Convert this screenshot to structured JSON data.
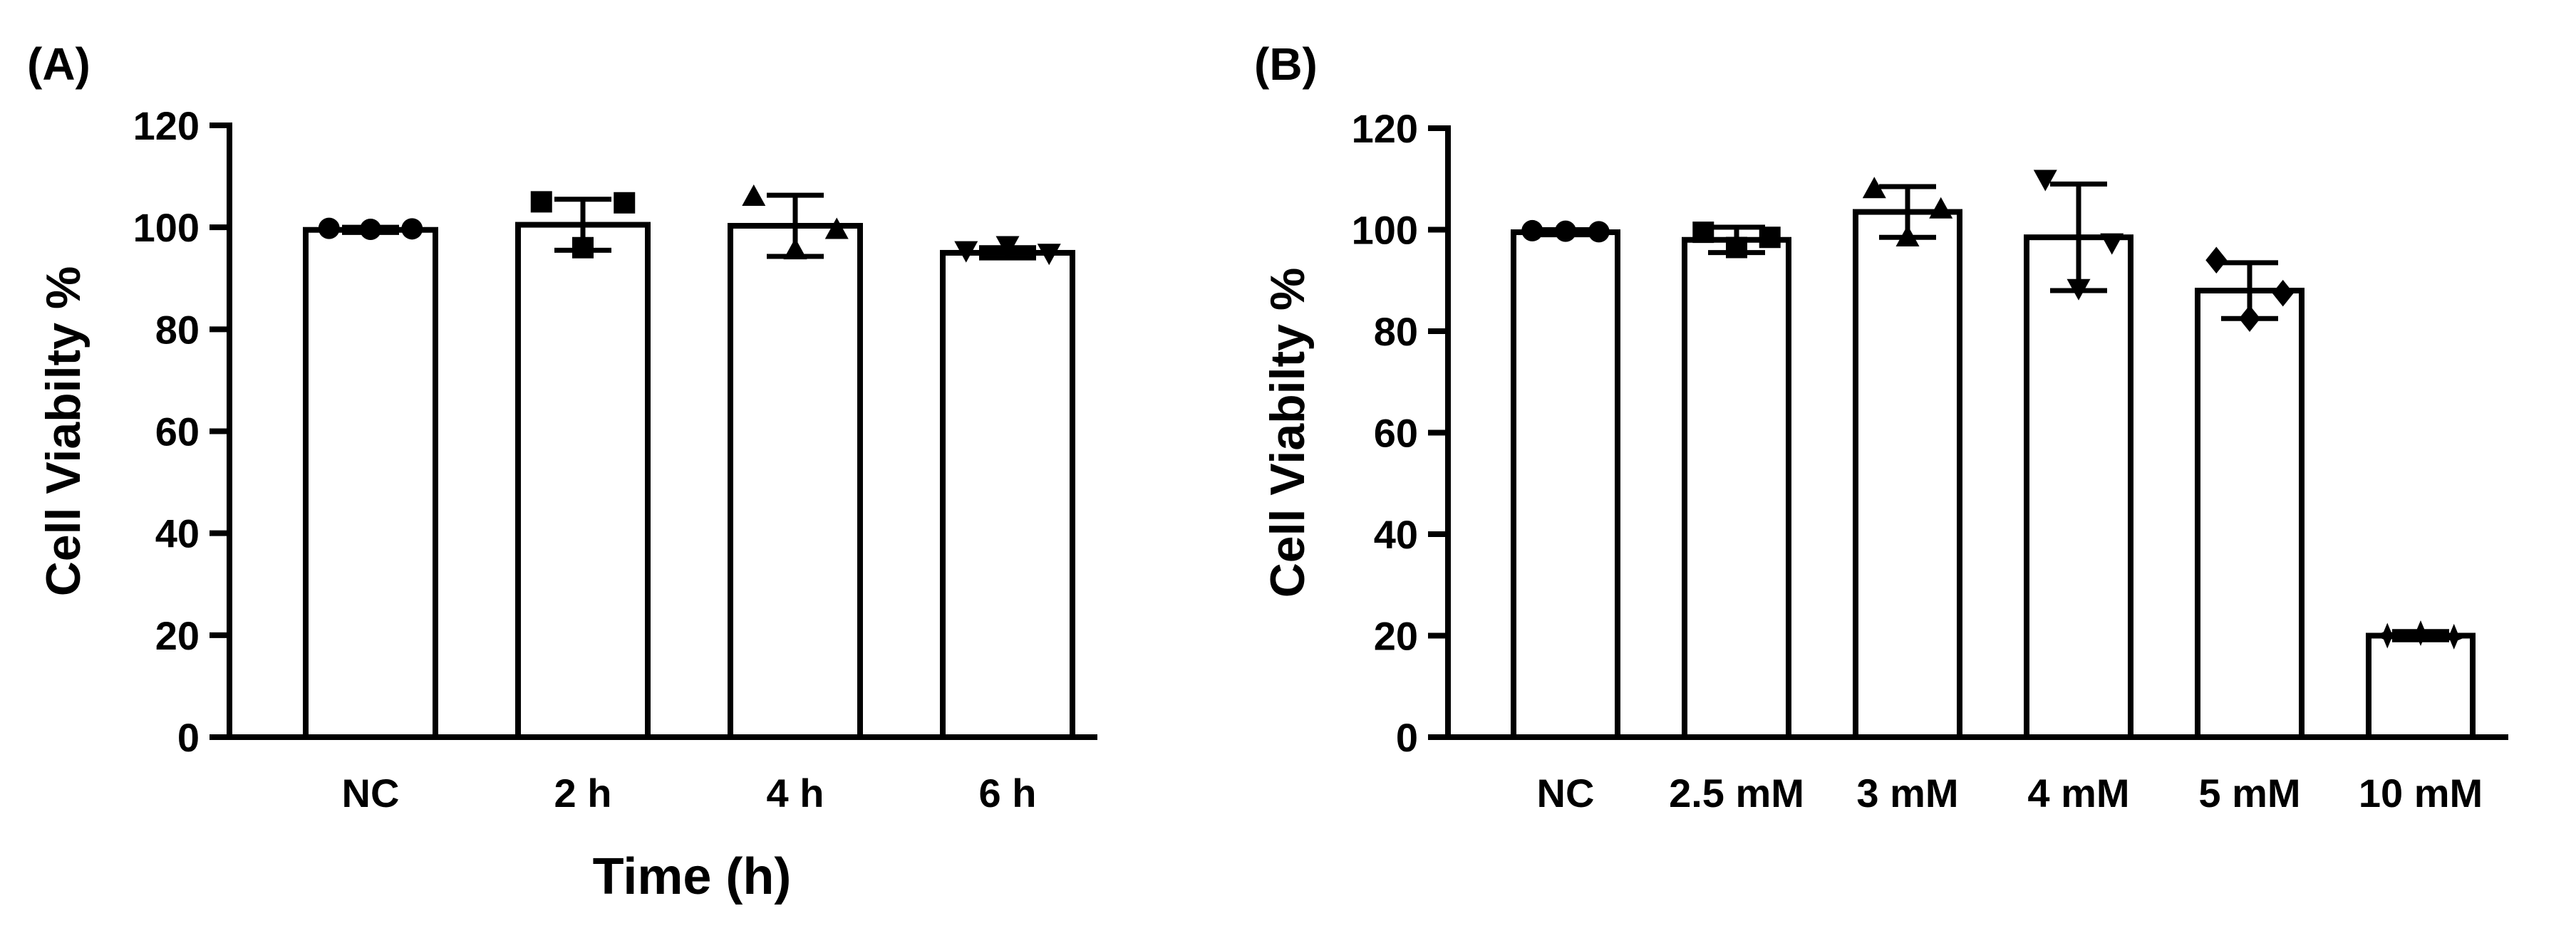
{
  "chart_data": [
    {
      "type": "bar",
      "panel_label": "(A)",
      "title": "",
      "xlabel": "Time (h)",
      "ylabel": "Cell Viabilty %",
      "ylim": [
        0,
        120
      ],
      "yticks": [
        0,
        20,
        40,
        60,
        80,
        100,
        120
      ],
      "categories": [
        "NC",
        "2 h",
        "4 h",
        "6 h"
      ],
      "values": [
        99.5,
        100.5,
        100.3,
        95.0
      ],
      "error": [
        0.5,
        5.0,
        6.0,
        1.0
      ],
      "points": [
        [
          99.8,
          99.6,
          99.7
        ],
        [
          105.0,
          96.0,
          104.8
        ],
        [
          106.0,
          95.5,
          99.5
        ],
        [
          95.5,
          96.5,
          95.0
        ]
      ],
      "markers": [
        "circle",
        "square",
        "triangle-up",
        "triangle-down"
      ],
      "grid": false
    },
    {
      "type": "bar",
      "panel_label": "(B)",
      "title": "",
      "xlabel": "",
      "ylabel": "Cell Viabilty %",
      "ylim": [
        0,
        120
      ],
      "yticks": [
        0,
        20,
        40,
        60,
        80,
        100,
        120
      ],
      "categories": [
        "NC",
        "2.5 mM",
        "3 mM",
        "4 mM",
        "5 mM",
        "10 mM"
      ],
      "values": [
        99.5,
        98.0,
        103.5,
        98.5,
        88.0,
        20.0
      ],
      "error": [
        0.5,
        2.5,
        5.0,
        10.5,
        5.5,
        0.8
      ],
      "points": [
        [
          99.8,
          99.7,
          99.6
        ],
        [
          99.5,
          96.5,
          98.5
        ],
        [
          108.0,
          98.5,
          104.0
        ],
        [
          110.0,
          88.5,
          97.5
        ],
        [
          94.0,
          82.5,
          87.5
        ],
        [
          20.0,
          20.5,
          19.8
        ]
      ],
      "markers": [
        "circle",
        "square",
        "triangle-up",
        "triangle-down",
        "diamond",
        "star"
      ],
      "grid": false
    }
  ]
}
